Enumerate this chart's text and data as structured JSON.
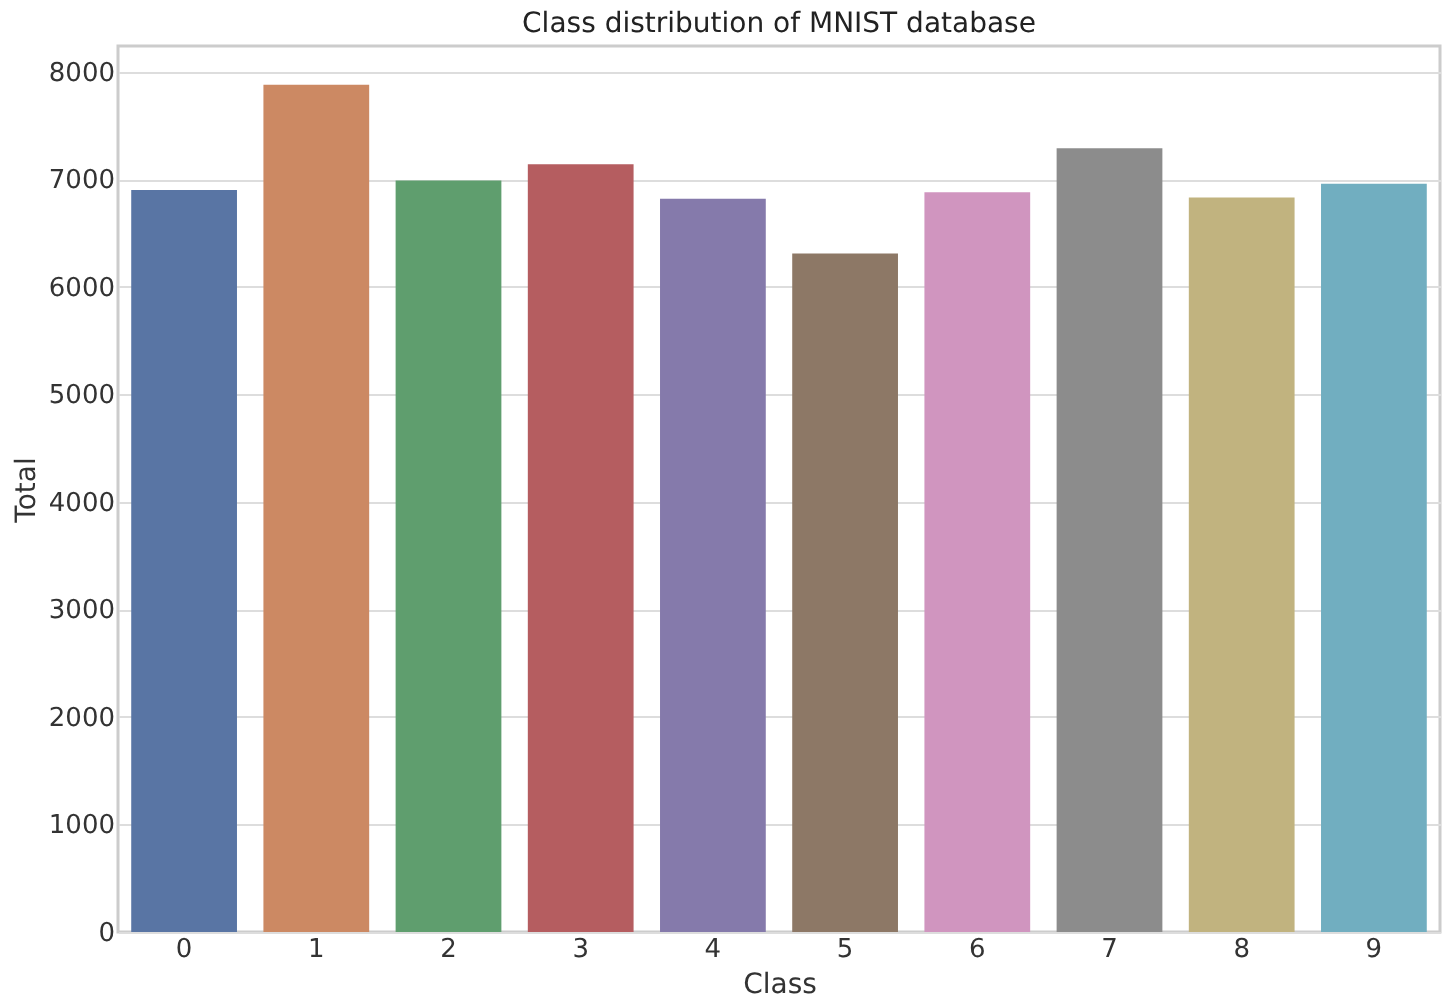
{
  "chart_data": {
    "type": "bar",
    "title": "Class distribution of MNIST database",
    "xlabel": "Class",
    "ylabel": "Total",
    "categories": [
      "0",
      "1",
      "2",
      "3",
      "4",
      "5",
      "6",
      "7",
      "8",
      "9"
    ],
    "values": [
      6900,
      7880,
      6990,
      7140,
      6820,
      6310,
      6880,
      7290,
      6830,
      6960
    ],
    "colors": [
      "#5975a4",
      "#cc8963",
      "#5f9e6e",
      "#b55d60",
      "#857aab",
      "#8d7866",
      "#d095bf",
      "#8c8c8c",
      "#c1b37f",
      "#71aec0"
    ],
    "ylim": [
      0,
      8240
    ],
    "yticks": [
      0,
      1000,
      2000,
      3000,
      4000,
      5000,
      6000,
      7000,
      8000
    ],
    "grid": "y"
  }
}
